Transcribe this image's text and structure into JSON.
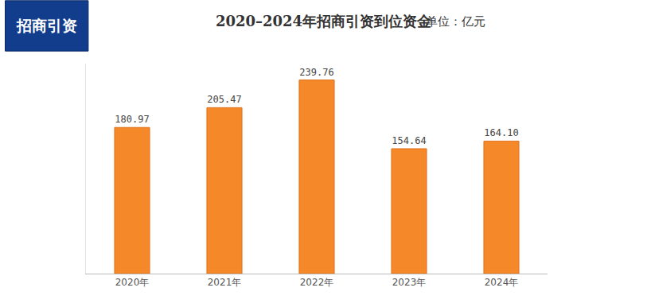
{
  "chart_data": {
    "type": "bar",
    "title": "2020–2024年招商引资到位资金",
    "subtitle": "单位：亿元",
    "annotations": [
      "招商引资"
    ],
    "categories": [
      "2020年",
      "2021年",
      "2022年",
      "2023年",
      "2024年"
    ],
    "values": [
      180.97,
      205.47,
      239.76,
      154.64,
      164.1
    ],
    "value_labels": [
      "180.97",
      "205.47",
      "239.76",
      "154.64",
      "164.10"
    ],
    "color": "#f5892a",
    "data_labels": true,
    "tick_labels": "x",
    "grid": false,
    "ylim": [
      0,
      260
    ],
    "yticks": []
  }
}
